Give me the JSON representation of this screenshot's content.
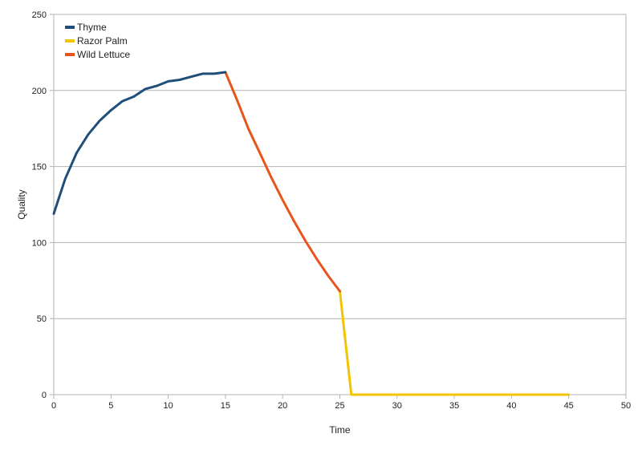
{
  "chart_data": {
    "type": "line",
    "title": "",
    "xlabel": "Time",
    "ylabel": "Quality",
    "xlim": [
      0,
      50
    ],
    "ylim": [
      0,
      250
    ],
    "xticks": [
      0,
      5,
      10,
      15,
      20,
      25,
      30,
      35,
      40,
      45,
      50
    ],
    "yticks": [
      0,
      50,
      100,
      150,
      200,
      250
    ],
    "grid": "horizontal",
    "legend_position": "top-left",
    "series": [
      {
        "name": "Thyme",
        "color": "#1f4e79",
        "x": [
          0,
          1,
          2,
          3,
          4,
          5,
          6,
          7,
          8,
          9,
          10,
          11,
          12,
          13,
          14,
          15
        ],
        "y": [
          119,
          142,
          159,
          171,
          180,
          187,
          193,
          196,
          201,
          203,
          206,
          207,
          209,
          211,
          211,
          212
        ]
      },
      {
        "name": "Razor Palm",
        "color": "#f2c500",
        "x": [
          25,
          26,
          27,
          28,
          29,
          30,
          31,
          32,
          33,
          34,
          35,
          36,
          37,
          38,
          39,
          40,
          41,
          42,
          43,
          44,
          45
        ],
        "y": [
          68,
          0,
          0,
          0,
          0,
          0,
          0,
          0,
          0,
          0,
          0,
          0,
          0,
          0,
          0,
          0,
          0,
          0,
          0,
          0,
          0
        ]
      },
      {
        "name": "Wild Lettuce",
        "color": "#e8541c",
        "x": [
          15,
          16,
          17,
          18,
          19,
          20,
          21,
          22,
          23,
          24,
          25
        ],
        "y": [
          212,
          194,
          175,
          159,
          143,
          128,
          114,
          101,
          89,
          78,
          68
        ]
      }
    ]
  }
}
